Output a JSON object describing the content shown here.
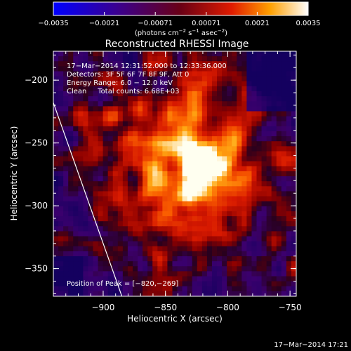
{
  "chart_data": {
    "type": "heatmap",
    "title": "Reconstructed RHESSI Image",
    "xlabel": "Heliocentric X (arcsec)",
    "ylabel": "Heliocentric Y (arcsec)",
    "xlim": [
      -940,
      -745
    ],
    "ylim": [
      -372,
      -177
    ],
    "xticks": [
      -900,
      -850,
      -800,
      -750
    ],
    "xtick_labels": [
      "−900",
      "−850",
      "−800",
      "−750"
    ],
    "yticks": [
      -200,
      -250,
      -300,
      -350
    ],
    "ytick_labels": [
      "−200",
      "−250",
      "−300",
      "−350"
    ],
    "colorbar": {
      "range": [
        -0.0035,
        0.0035
      ],
      "tick_labels": [
        "−0.0035",
        "−0.0021",
        "−0.00071",
        "0.00071",
        "0.0021",
        "0.0035"
      ],
      "label_main": "(photons cm",
      "label_exp1": "−2",
      "label_mid": " s",
      "label_exp2": "−1",
      "label_mid2": " asec",
      "label_exp3": "−2",
      "label_end": ")"
    },
    "annotations": [
      "17−Mar−2014 12:31:52.000 to 12:33:36.000",
      "Detectors: 3F 5F 6F 7F 8F 9F, Att 0",
      "Energy Range: 6.0 − 12.0 keV",
      "Clean     Total counts: 6.68E+03"
    ],
    "peak_label": "Position of Peak = [−820,−269]",
    "peak": {
      "x": -820,
      "y": -269
    },
    "limb_points": [
      [
        -940,
        -218
      ],
      [
        -885,
        -372
      ]
    ],
    "footer": "17−Mar−2014 17:21"
  }
}
